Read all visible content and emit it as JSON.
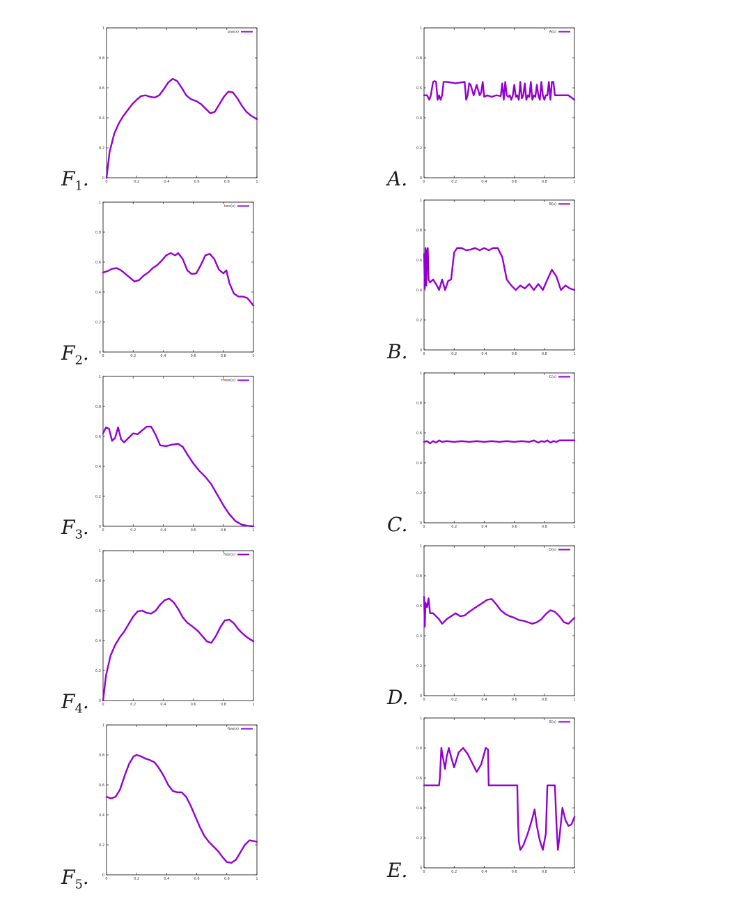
{
  "chart_data": [
    {
      "type": "line",
      "id": "F1",
      "panel_label": "F",
      "panel_sub": "1",
      "panel_suffix": ".",
      "legend": "one(x)",
      "series_color": "#9400d3",
      "xlim": [
        0,
        1
      ],
      "ylim": [
        0,
        1
      ],
      "x_ticks": [
        "0",
        "0.2",
        "0.4",
        "0.6",
        "0.8",
        "1"
      ],
      "y_ticks": [
        "0",
        "0.2",
        "0.4",
        "0.6",
        "0.8",
        "1"
      ],
      "x": [
        0,
        0.02,
        0.05,
        0.08,
        0.11,
        0.14,
        0.17,
        0.2,
        0.23,
        0.26,
        0.29,
        0.32,
        0.35,
        0.38,
        0.41,
        0.44,
        0.47,
        0.5,
        0.53,
        0.56,
        0.6,
        0.63,
        0.66,
        0.69,
        0.72,
        0.75,
        0.78,
        0.81,
        0.84,
        0.87,
        0.9,
        0.93,
        0.96,
        1.0
      ],
      "y": [
        0,
        0.17,
        0.29,
        0.36,
        0.41,
        0.45,
        0.49,
        0.52,
        0.545,
        0.55,
        0.54,
        0.535,
        0.55,
        0.59,
        0.635,
        0.66,
        0.645,
        0.6,
        0.55,
        0.525,
        0.51,
        0.49,
        0.46,
        0.43,
        0.44,
        0.49,
        0.54,
        0.575,
        0.57,
        0.53,
        0.48,
        0.44,
        0.415,
        0.39
      ]
    },
    {
      "type": "line",
      "id": "F2",
      "panel_label": "F",
      "panel_sub": "2",
      "panel_suffix": ".",
      "legend": "two(x)",
      "series_color": "#9400d3",
      "xlim": [
        0,
        1
      ],
      "ylim": [
        0,
        1
      ],
      "x_ticks": [
        "0",
        "0.2",
        "0.4",
        "0.6",
        "0.8",
        "1"
      ],
      "y_ticks": [
        "0",
        "0.2",
        "0.4",
        "0.6",
        "0.8",
        "1"
      ],
      "x": [
        0,
        0.03,
        0.06,
        0.09,
        0.12,
        0.15,
        0.18,
        0.21,
        0.24,
        0.27,
        0.3,
        0.33,
        0.36,
        0.39,
        0.42,
        0.45,
        0.48,
        0.5,
        0.53,
        0.56,
        0.59,
        0.62,
        0.65,
        0.68,
        0.71,
        0.74,
        0.77,
        0.8,
        0.82,
        0.84,
        0.87,
        0.9,
        0.93,
        0.96,
        1.0
      ],
      "y": [
        0.53,
        0.54,
        0.555,
        0.56,
        0.545,
        0.52,
        0.495,
        0.47,
        0.48,
        0.51,
        0.53,
        0.56,
        0.58,
        0.61,
        0.645,
        0.66,
        0.645,
        0.66,
        0.62,
        0.545,
        0.52,
        0.525,
        0.58,
        0.645,
        0.655,
        0.62,
        0.55,
        0.525,
        0.545,
        0.46,
        0.39,
        0.37,
        0.37,
        0.36,
        0.31
      ]
    },
    {
      "type": "line",
      "id": "F3",
      "panel_label": "F",
      "panel_sub": "3",
      "panel_suffix": ".",
      "legend": "three(x)",
      "series_color": "#9400d3",
      "xlim": [
        0,
        1
      ],
      "ylim": [
        0,
        1
      ],
      "x_ticks": [
        "0",
        "0.2",
        "0.4",
        "0.6",
        "0.8",
        "1"
      ],
      "y_ticks": [
        "0",
        "0.2",
        "0.4",
        "0.6",
        "0.8",
        "1"
      ],
      "x": [
        0,
        0.02,
        0.04,
        0.06,
        0.08,
        0.1,
        0.12,
        0.14,
        0.17,
        0.2,
        0.23,
        0.26,
        0.29,
        0.32,
        0.35,
        0.38,
        0.42,
        0.46,
        0.5,
        0.53,
        0.56,
        0.6,
        0.64,
        0.68,
        0.72,
        0.76,
        0.8,
        0.84,
        0.88,
        0.92,
        0.96,
        1.0
      ],
      "y": [
        0.62,
        0.66,
        0.65,
        0.57,
        0.59,
        0.66,
        0.58,
        0.56,
        0.59,
        0.62,
        0.615,
        0.64,
        0.665,
        0.665,
        0.61,
        0.54,
        0.535,
        0.545,
        0.55,
        0.53,
        0.48,
        0.42,
        0.37,
        0.33,
        0.28,
        0.21,
        0.14,
        0.08,
        0.035,
        0.012,
        0.003,
        0.0
      ]
    },
    {
      "type": "line",
      "id": "F4",
      "panel_label": "F",
      "panel_sub": "4",
      "panel_suffix": ".",
      "legend": "four(x)",
      "series_color": "#9400d3",
      "xlim": [
        0,
        1
      ],
      "ylim": [
        0,
        1
      ],
      "x_ticks": [
        "0",
        "0.2",
        "0.4",
        "0.6",
        "0.8",
        "1"
      ],
      "y_ticks": [
        "0",
        "0.2",
        "0.4",
        "0.6",
        "0.8",
        "1"
      ],
      "x": [
        0,
        0.02,
        0.05,
        0.08,
        0.11,
        0.14,
        0.17,
        0.2,
        0.23,
        0.26,
        0.29,
        0.32,
        0.35,
        0.38,
        0.41,
        0.44,
        0.47,
        0.5,
        0.53,
        0.56,
        0.6,
        0.63,
        0.66,
        0.69,
        0.72,
        0.75,
        0.78,
        0.81,
        0.84,
        0.87,
        0.9,
        0.93,
        0.96,
        1.0
      ],
      "y": [
        0,
        0.17,
        0.3,
        0.37,
        0.42,
        0.46,
        0.51,
        0.56,
        0.595,
        0.6,
        0.585,
        0.58,
        0.6,
        0.64,
        0.67,
        0.68,
        0.655,
        0.61,
        0.555,
        0.52,
        0.49,
        0.465,
        0.43,
        0.395,
        0.385,
        0.43,
        0.49,
        0.535,
        0.54,
        0.515,
        0.475,
        0.445,
        0.42,
        0.395
      ]
    },
    {
      "type": "line",
      "id": "F5",
      "panel_label": "F",
      "panel_sub": "5",
      "panel_suffix": ".",
      "legend": "five(x)",
      "series_color": "#9400d3",
      "xlim": [
        0,
        1
      ],
      "ylim": [
        0,
        1
      ],
      "x_ticks": [
        "0",
        "0.2",
        "0.4",
        "0.6",
        "0.8",
        "1"
      ],
      "y_ticks": [
        "0",
        "0.2",
        "0.4",
        "0.6",
        "0.8",
        "1"
      ],
      "x": [
        0,
        0.03,
        0.06,
        0.09,
        0.12,
        0.15,
        0.18,
        0.2,
        0.23,
        0.26,
        0.29,
        0.32,
        0.35,
        0.38,
        0.41,
        0.44,
        0.47,
        0.5,
        0.53,
        0.56,
        0.59,
        0.62,
        0.65,
        0.68,
        0.71,
        0.74,
        0.77,
        0.8,
        0.83,
        0.86,
        0.89,
        0.92,
        0.95,
        0.98,
        1.0
      ],
      "y": [
        0.52,
        0.51,
        0.52,
        0.57,
        0.66,
        0.74,
        0.79,
        0.8,
        0.79,
        0.775,
        0.765,
        0.75,
        0.71,
        0.66,
        0.6,
        0.56,
        0.55,
        0.55,
        0.52,
        0.46,
        0.39,
        0.32,
        0.26,
        0.22,
        0.19,
        0.16,
        0.12,
        0.085,
        0.08,
        0.1,
        0.15,
        0.2,
        0.23,
        0.225,
        0.22
      ]
    },
    {
      "type": "line",
      "id": "A",
      "panel_label": "A",
      "panel_sub": "",
      "panel_suffix": ".",
      "legend": "A(x)",
      "series_color": "#9400d3",
      "xlim": [
        0,
        1
      ],
      "ylim": [
        0,
        1
      ],
      "x_ticks": [
        "0",
        "0.2",
        "0.4",
        "0.6",
        "0.8",
        "1"
      ],
      "y_ticks": [
        "0",
        "0.2",
        "0.4",
        "0.6",
        "0.8",
        "1"
      ],
      "x": [
        0,
        0.02,
        0.035,
        0.045,
        0.06,
        0.07,
        0.08,
        0.09,
        0.1,
        0.11,
        0.12,
        0.13,
        0.15,
        0.18,
        0.21,
        0.24,
        0.27,
        0.28,
        0.29,
        0.3,
        0.31,
        0.33,
        0.35,
        0.37,
        0.38,
        0.39,
        0.4,
        0.42,
        0.45,
        0.48,
        0.51,
        0.52,
        0.53,
        0.54,
        0.55,
        0.56,
        0.57,
        0.58,
        0.59,
        0.6,
        0.61,
        0.62,
        0.63,
        0.64,
        0.65,
        0.66,
        0.67,
        0.68,
        0.69,
        0.7,
        0.71,
        0.72,
        0.73,
        0.74,
        0.75,
        0.76,
        0.77,
        0.78,
        0.79,
        0.8,
        0.81,
        0.82,
        0.83,
        0.84,
        0.85,
        0.86,
        0.87,
        0.88,
        0.92,
        0.96,
        1.0
      ],
      "y": [
        0.55,
        0.55,
        0.52,
        0.55,
        0.64,
        0.645,
        0.64,
        0.52,
        0.55,
        0.52,
        0.55,
        0.64,
        0.64,
        0.635,
        0.63,
        0.635,
        0.64,
        0.52,
        0.55,
        0.63,
        0.62,
        0.55,
        0.62,
        0.55,
        0.57,
        0.64,
        0.54,
        0.55,
        0.54,
        0.55,
        0.545,
        0.63,
        0.52,
        0.64,
        0.55,
        0.54,
        0.55,
        0.52,
        0.55,
        0.62,
        0.54,
        0.55,
        0.52,
        0.64,
        0.53,
        0.55,
        0.63,
        0.52,
        0.55,
        0.54,
        0.64,
        0.52,
        0.55,
        0.54,
        0.62,
        0.55,
        0.52,
        0.64,
        0.55,
        0.52,
        0.55,
        0.55,
        0.64,
        0.52,
        0.64,
        0.64,
        0.55,
        0.55,
        0.55,
        0.55,
        0.52
      ]
    },
    {
      "type": "line",
      "id": "B",
      "panel_label": "B",
      "panel_sub": "",
      "panel_suffix": ".",
      "legend": "B(x)",
      "series_color": "#9400d3",
      "xlim": [
        0,
        1
      ],
      "ylim": [
        0,
        1
      ],
      "x_ticks": [
        "0",
        "0.2",
        "0.4",
        "0.6",
        "0.8",
        "1"
      ],
      "y_ticks": [
        "0",
        "0.2",
        "0.4",
        "0.6",
        "0.8",
        "1"
      ],
      "x": [
        0,
        0.005,
        0.01,
        0.015,
        0.02,
        0.025,
        0.03,
        0.04,
        0.06,
        0.08,
        0.1,
        0.12,
        0.14,
        0.16,
        0.18,
        0.2,
        0.22,
        0.25,
        0.28,
        0.31,
        0.34,
        0.37,
        0.4,
        0.43,
        0.46,
        0.49,
        0.52,
        0.55,
        0.58,
        0.61,
        0.64,
        0.67,
        0.7,
        0.73,
        0.76,
        0.79,
        0.82,
        0.85,
        0.88,
        0.91,
        0.94,
        0.97,
        1.0
      ],
      "y": [
        0.64,
        0.41,
        0.68,
        0.43,
        0.66,
        0.68,
        0.47,
        0.45,
        0.47,
        0.44,
        0.4,
        0.47,
        0.4,
        0.46,
        0.47,
        0.65,
        0.68,
        0.68,
        0.665,
        0.67,
        0.68,
        0.665,
        0.68,
        0.665,
        0.68,
        0.68,
        0.62,
        0.47,
        0.43,
        0.4,
        0.43,
        0.41,
        0.44,
        0.4,
        0.44,
        0.4,
        0.47,
        0.535,
        0.49,
        0.4,
        0.43,
        0.41,
        0.4
      ]
    },
    {
      "type": "line",
      "id": "C",
      "panel_label": "C",
      "panel_sub": "",
      "panel_suffix": ".",
      "legend": "C(x)",
      "series_color": "#9400d3",
      "xlim": [
        0,
        1
      ],
      "ylim": [
        0,
        1
      ],
      "x_ticks": [
        "0",
        "0.2",
        "0.4",
        "0.6",
        "0.8",
        "1"
      ],
      "y_ticks": [
        "0",
        "0.2",
        "0.4",
        "0.6",
        "0.8",
        "1"
      ],
      "x": [
        0,
        0.02,
        0.04,
        0.06,
        0.08,
        0.1,
        0.12,
        0.15,
        0.2,
        0.25,
        0.3,
        0.35,
        0.4,
        0.45,
        0.5,
        0.55,
        0.6,
        0.65,
        0.7,
        0.73,
        0.76,
        0.78,
        0.8,
        0.82,
        0.84,
        0.86,
        0.88,
        0.9,
        0.95,
        1.0
      ],
      "y": [
        0.54,
        0.545,
        0.53,
        0.545,
        0.535,
        0.55,
        0.54,
        0.545,
        0.54,
        0.545,
        0.54,
        0.545,
        0.54,
        0.545,
        0.54,
        0.545,
        0.54,
        0.545,
        0.54,
        0.55,
        0.535,
        0.545,
        0.54,
        0.55,
        0.535,
        0.545,
        0.54,
        0.55,
        0.55,
        0.55
      ]
    },
    {
      "type": "line",
      "id": "D",
      "panel_label": "D",
      "panel_sub": "",
      "panel_suffix": ".",
      "legend": "D(x)",
      "series_color": "#9400d3",
      "xlim": [
        0,
        1
      ],
      "ylim": [
        0,
        1
      ],
      "x_ticks": [
        "0",
        "0.2",
        "0.4",
        "0.6",
        "0.8",
        "1"
      ],
      "y_ticks": [
        "0",
        "0.2",
        "0.4",
        "0.6",
        "0.8",
        "1"
      ],
      "x": [
        0,
        0.005,
        0.01,
        0.02,
        0.03,
        0.04,
        0.06,
        0.08,
        0.1,
        0.12,
        0.15,
        0.18,
        0.21,
        0.24,
        0.27,
        0.3,
        0.33,
        0.36,
        0.39,
        0.42,
        0.45,
        0.48,
        0.51,
        0.54,
        0.57,
        0.6,
        0.63,
        0.66,
        0.69,
        0.72,
        0.75,
        0.78,
        0.81,
        0.84,
        0.87,
        0.9,
        0.93,
        0.96,
        1.0
      ],
      "y": [
        0.66,
        0.46,
        0.62,
        0.59,
        0.65,
        0.55,
        0.55,
        0.53,
        0.51,
        0.48,
        0.51,
        0.53,
        0.55,
        0.53,
        0.535,
        0.56,
        0.58,
        0.6,
        0.62,
        0.64,
        0.645,
        0.61,
        0.57,
        0.545,
        0.53,
        0.52,
        0.505,
        0.5,
        0.49,
        0.48,
        0.49,
        0.51,
        0.545,
        0.57,
        0.56,
        0.53,
        0.49,
        0.48,
        0.52
      ]
    },
    {
      "type": "line",
      "id": "E",
      "panel_label": "E",
      "panel_sub": "",
      "panel_suffix": ".",
      "legend": "E(x)",
      "series_color": "#9400d3",
      "xlim": [
        0,
        1
      ],
      "ylim": [
        0,
        1
      ],
      "x_ticks": [
        "0",
        "0.2",
        "0.4",
        "0.6",
        "0.8",
        "1"
      ],
      "y_ticks": [
        "0",
        "0.2",
        "0.4",
        "0.6",
        "0.8",
        "1"
      ],
      "x": [
        0,
        0.05,
        0.1,
        0.105,
        0.115,
        0.125,
        0.14,
        0.15,
        0.165,
        0.18,
        0.2,
        0.23,
        0.26,
        0.29,
        0.32,
        0.35,
        0.38,
        0.41,
        0.425,
        0.43,
        0.47,
        0.52,
        0.57,
        0.62,
        0.625,
        0.63,
        0.64,
        0.66,
        0.69,
        0.72,
        0.735,
        0.75,
        0.77,
        0.79,
        0.81,
        0.82,
        0.83,
        0.85,
        0.86,
        0.87,
        0.88,
        0.89,
        0.9,
        0.92,
        0.94,
        0.96,
        0.98,
        1.0
      ],
      "y": [
        0.55,
        0.55,
        0.55,
        0.6,
        0.8,
        0.74,
        0.66,
        0.74,
        0.8,
        0.74,
        0.67,
        0.77,
        0.8,
        0.76,
        0.7,
        0.64,
        0.69,
        0.8,
        0.79,
        0.55,
        0.55,
        0.55,
        0.55,
        0.55,
        0.3,
        0.18,
        0.12,
        0.15,
        0.23,
        0.33,
        0.39,
        0.28,
        0.18,
        0.12,
        0.23,
        0.55,
        0.55,
        0.55,
        0.55,
        0.55,
        0.3,
        0.12,
        0.2,
        0.4,
        0.32,
        0.28,
        0.29,
        0.34
      ]
    }
  ]
}
